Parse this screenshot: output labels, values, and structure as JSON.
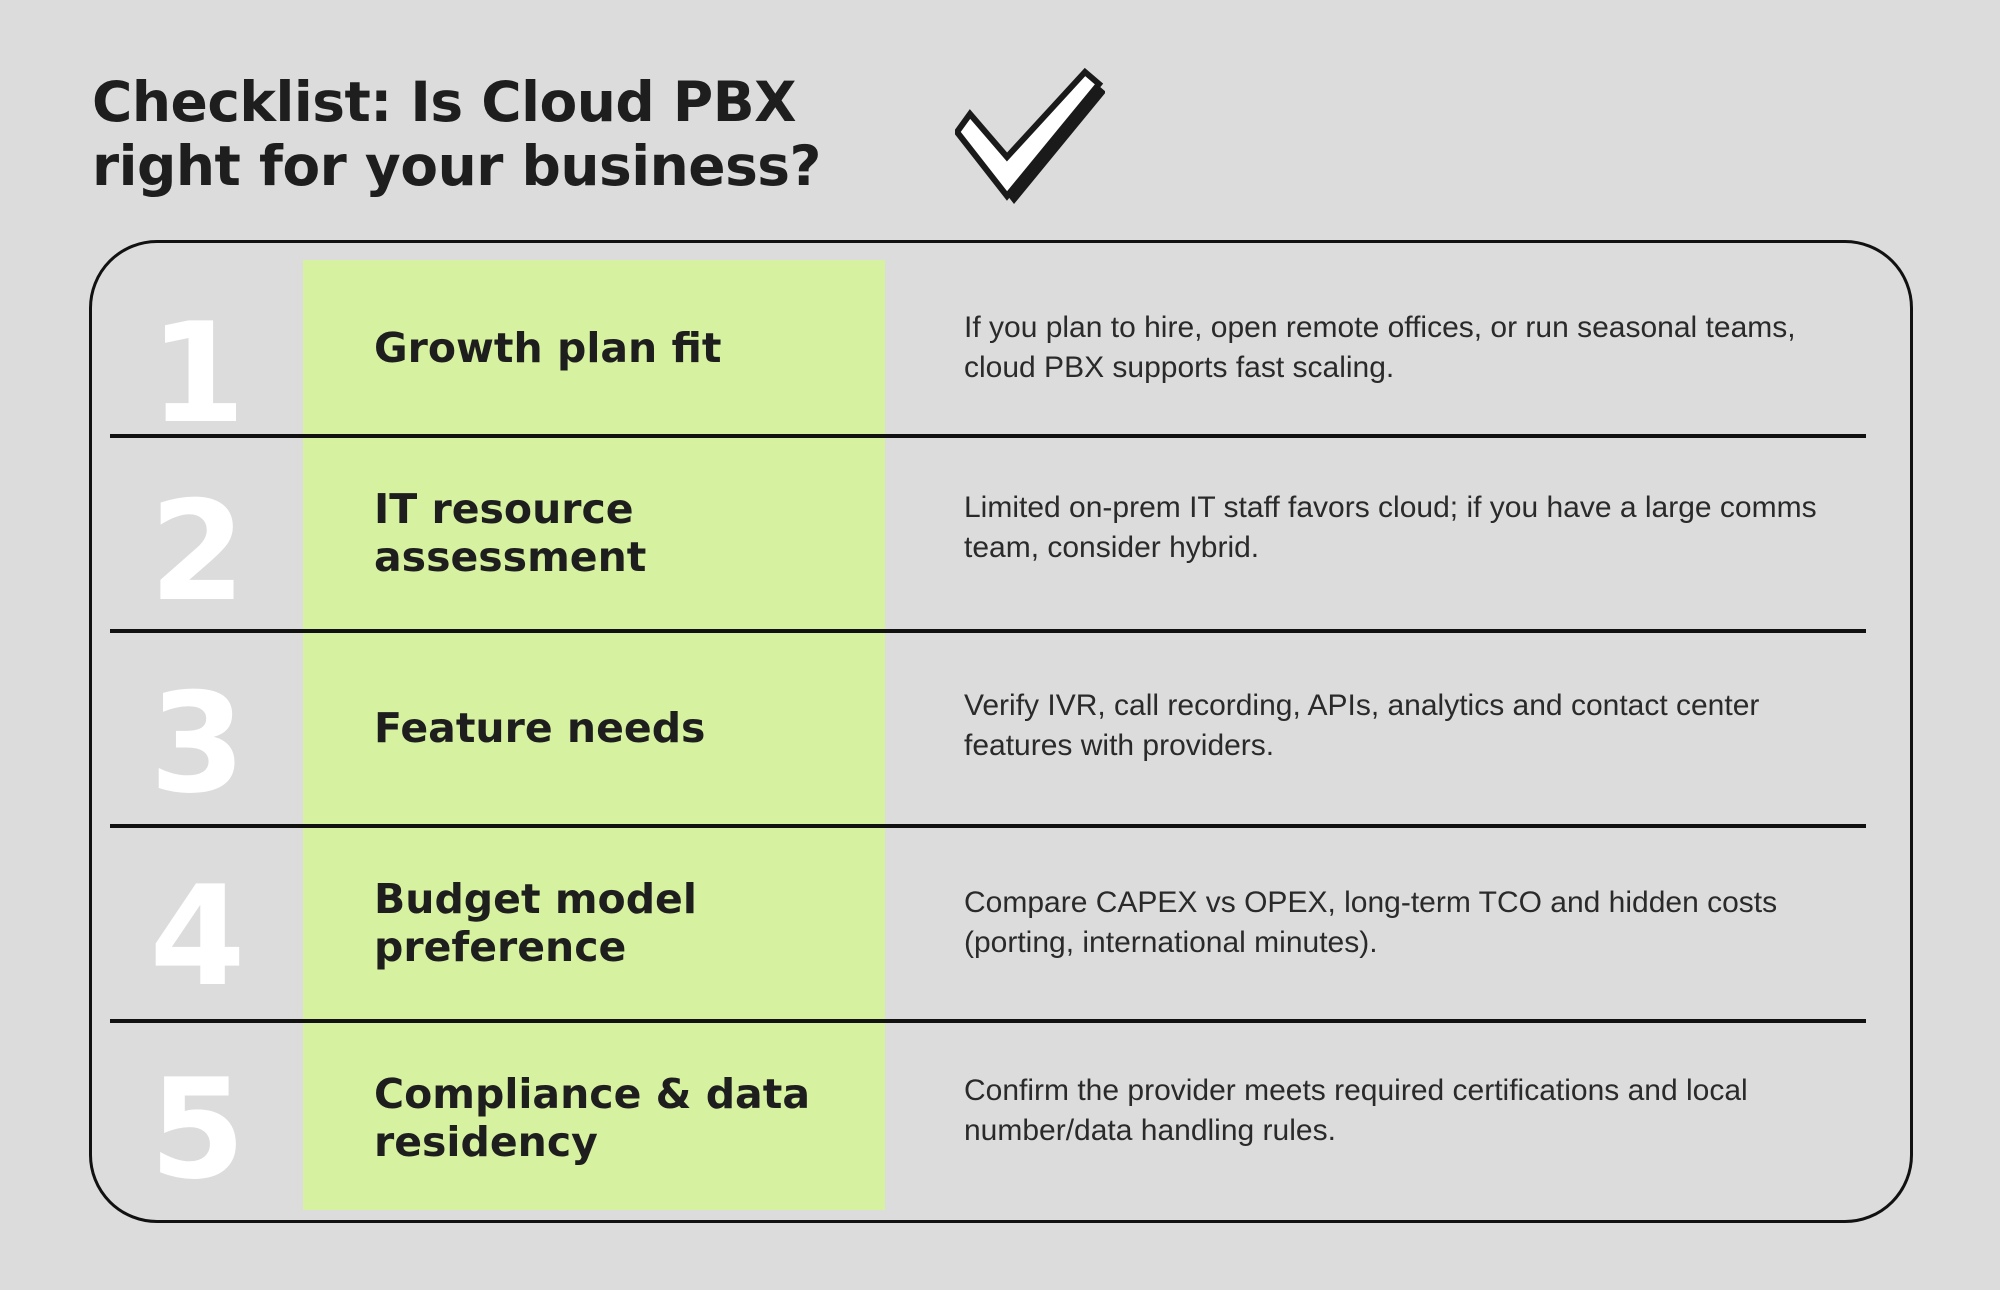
{
  "title": "Checklist: Is Cloud PBX right for your business?",
  "icons": {
    "check": "check-mark-icon"
  },
  "colors": {
    "background": "#dcdcdc",
    "highlight": "#d6f1a0",
    "border": "#111111",
    "number": "#ffffff"
  },
  "items": [
    {
      "number": "1",
      "label": "Growth plan fit",
      "description": "If you plan to hire, open remote offices, or run seasonal teams, cloud PBX supports fast scaling."
    },
    {
      "number": "2",
      "label": "IT resource assessment",
      "description": "Limited on-prem IT staff favors cloud; if you have a large comms team, consider hybrid."
    },
    {
      "number": "3",
      "label": "Feature needs",
      "description": "Verify IVR, call recording, APIs, analytics and contact center features with providers."
    },
    {
      "number": "4",
      "label": "Budget model preference",
      "description": "Compare CAPEX vs OPEX, long-term TCO and hidden costs (porting, international minutes)."
    },
    {
      "number": "5",
      "label": "Compliance & data residency",
      "description": "Confirm the provider meets required certifications and local number/data handling rules."
    }
  ]
}
